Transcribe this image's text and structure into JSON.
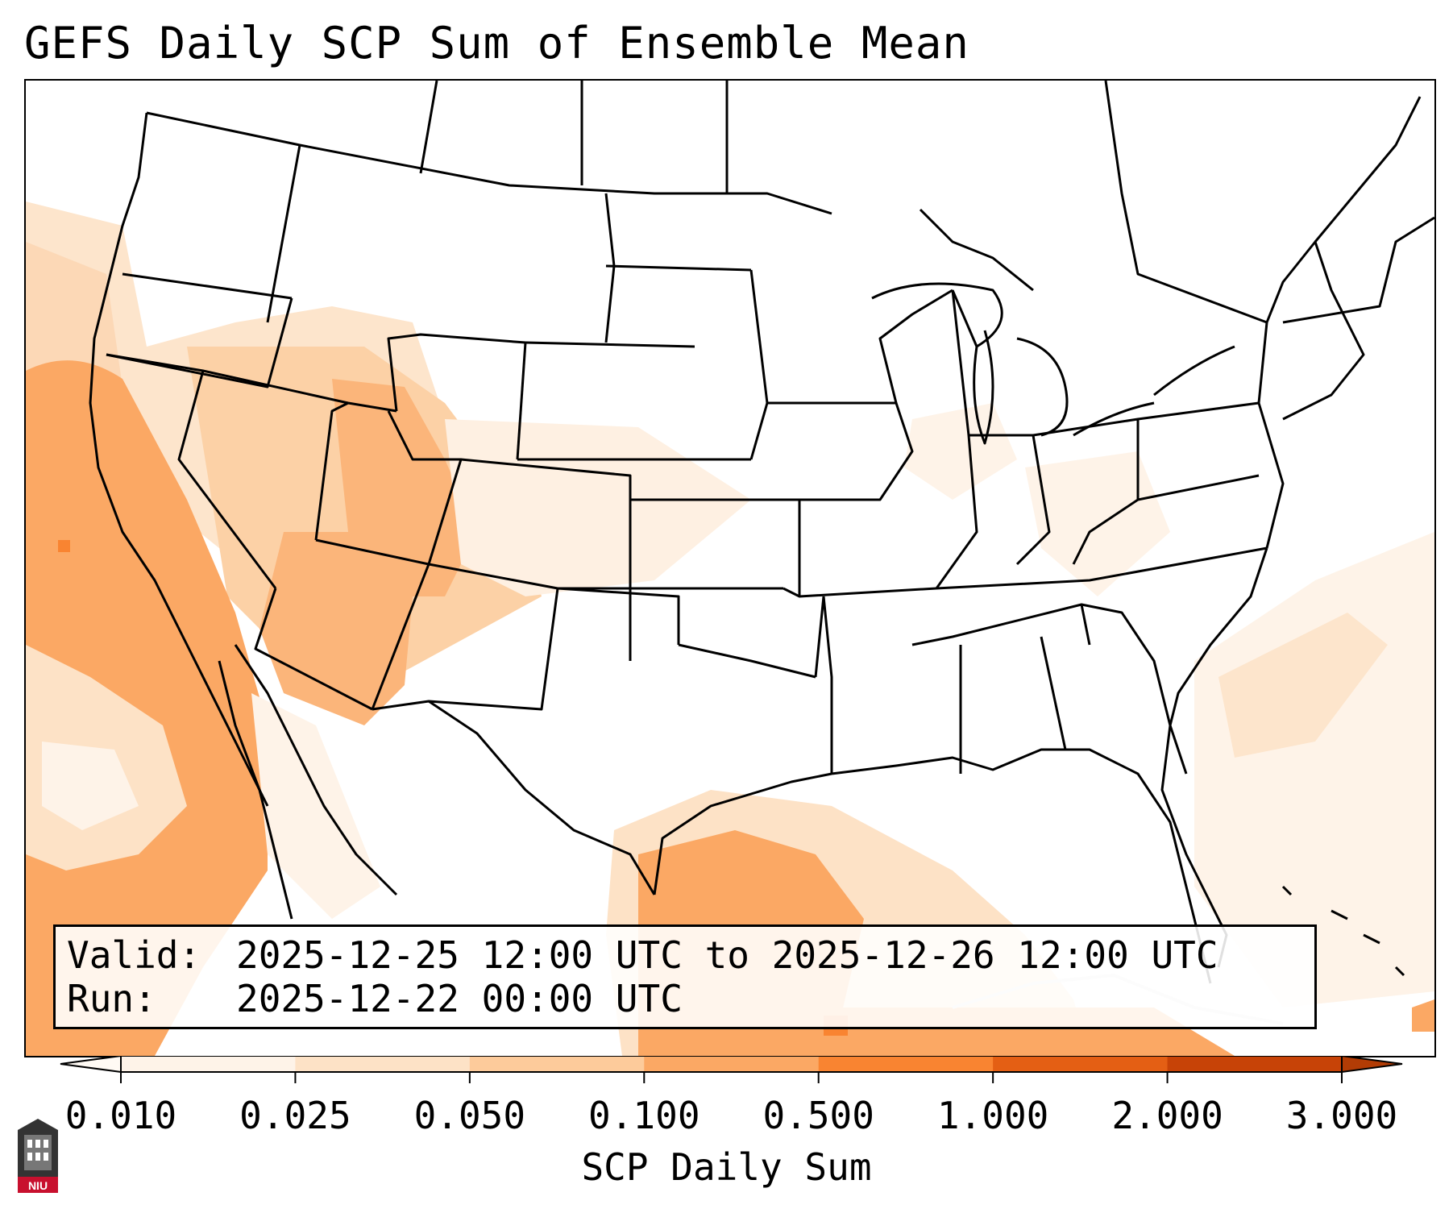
{
  "title": "GEFS Daily SCP Sum of Ensemble Mean",
  "info": {
    "valid_label": "Valid:",
    "valid_value": "2025-12-25 12:00 UTC to 2025-12-26 12:00 UTC",
    "run_label": "Run:",
    "run_value": "2025-12-22 00:00 UTC"
  },
  "colorbar": {
    "label": "SCP Daily Sum",
    "ticks": [
      "0.010",
      "0.025",
      "0.050",
      "0.100",
      "0.500",
      "1.000",
      "2.000",
      "3.000"
    ],
    "colors": [
      "#fef3e8",
      "#fde2c6",
      "#fdcb9b",
      "#fba864",
      "#f98431",
      "#e45f14",
      "#c74307"
    ],
    "extend_low_color": "#fffaf4",
    "extend_high_color": "#b23c05"
  },
  "logo": {
    "text": "NIU"
  }
}
